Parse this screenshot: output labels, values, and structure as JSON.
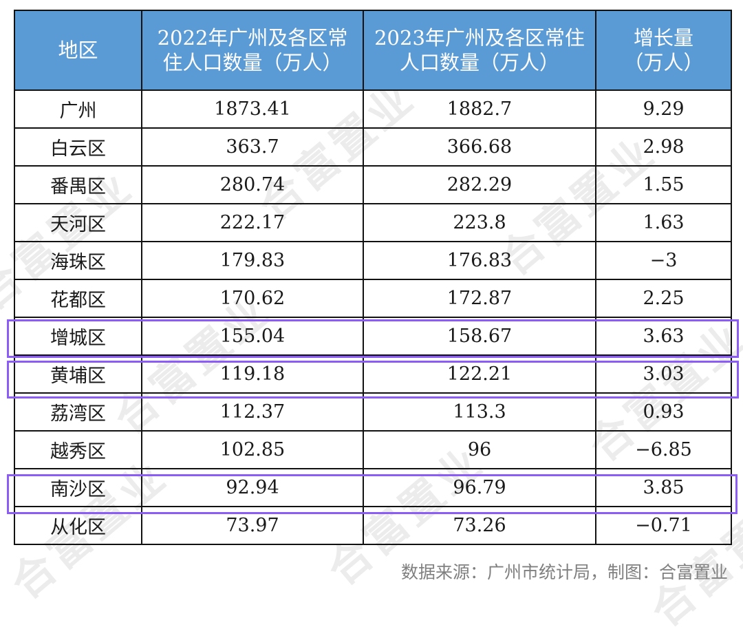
{
  "table": {
    "headers": [
      "地区",
      "2022年广州及各区常住人口数量（万人）",
      "2023年广州及各区常住人口数量（万人）",
      "增长量（万人）"
    ],
    "rows": [
      {
        "region": "广州",
        "pop_2022": "1873.41",
        "pop_2023": "1882.7",
        "growth": "9.29"
      },
      {
        "region": "白云区",
        "pop_2022": "363.7",
        "pop_2023": "366.68",
        "growth": "2.98"
      },
      {
        "region": "番禺区",
        "pop_2022": "280.74",
        "pop_2023": "282.29",
        "growth": "1.55"
      },
      {
        "region": "天河区",
        "pop_2022": "222.17",
        "pop_2023": "223.8",
        "growth": "1.63"
      },
      {
        "region": "海珠区",
        "pop_2022": "179.83",
        "pop_2023": "176.83",
        "growth": "−3"
      },
      {
        "region": "花都区",
        "pop_2022": "170.62",
        "pop_2023": "172.87",
        "growth": "2.25"
      },
      {
        "region": "增城区",
        "pop_2022": "155.04",
        "pop_2023": "158.67",
        "growth": "3.63"
      },
      {
        "region": "黄埔区",
        "pop_2022": "119.18",
        "pop_2023": "122.21",
        "growth": "3.03"
      },
      {
        "region": "荔湾区",
        "pop_2022": "112.37",
        "pop_2023": "113.3",
        "growth": "0.93"
      },
      {
        "region": "越秀区",
        "pop_2022": "102.85",
        "pop_2023": "96",
        "growth": "−6.85"
      },
      {
        "region": "南沙区",
        "pop_2022": "92.94",
        "pop_2023": "96.79",
        "growth": "3.85"
      },
      {
        "region": "从化区",
        "pop_2022": "73.97",
        "pop_2023": "73.26",
        "growth": "−0.71"
      }
    ],
    "highlighted_rows": [
      "增城区",
      "黄埔区",
      "南沙区"
    ]
  },
  "footer": {
    "source": "数据来源：广州市统计局，制图：合富置业"
  },
  "watermark": "合富置业",
  "colors": {
    "header_bg": "#5b9bd5",
    "header_text": "#ffffff",
    "highlight_border": "#8b5cf6",
    "grid": "#111111",
    "source_text": "#808080"
  }
}
